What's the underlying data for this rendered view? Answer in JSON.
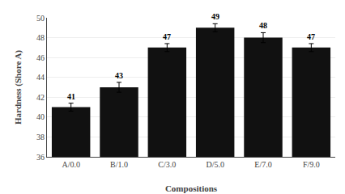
{
  "chart_data": {
    "type": "bar",
    "categories": [
      "A/0.0",
      "B/1.0",
      "C/3.0",
      "D/5.0",
      "E/7.0",
      "F/9.0"
    ],
    "values": [
      41,
      43,
      47,
      49,
      48,
      47
    ],
    "errors": [
      0.4,
      0.5,
      0.4,
      0.4,
      0.5,
      0.4
    ],
    "color": "#111111",
    "xlabel": "Compositions",
    "ylabel": "Hardness (Shore A)",
    "ylim": [
      36,
      50
    ],
    "yticks": [
      36,
      38,
      40,
      42,
      44,
      46,
      48,
      50
    ],
    "grid": true,
    "data_labels": true
  }
}
